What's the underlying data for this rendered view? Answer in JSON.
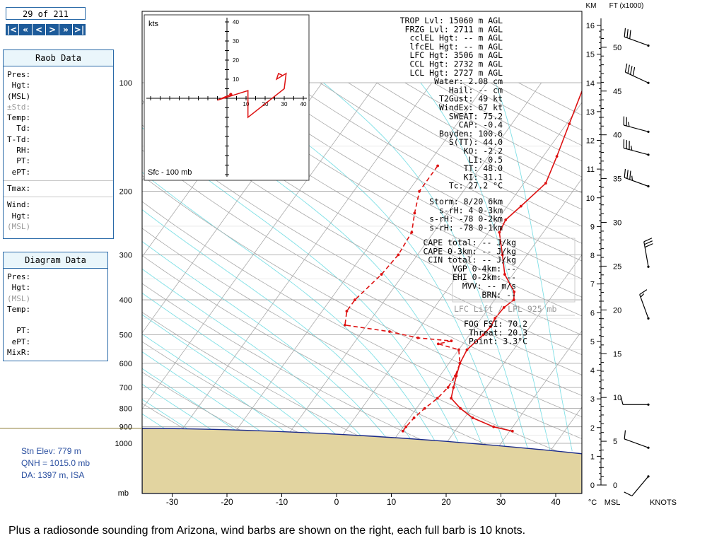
{
  "nav": {
    "counter": "29 of 211",
    "buttons": [
      {
        "label": "|<",
        "name": "first-button"
      },
      {
        "label": "«",
        "name": "prev-fast-button"
      },
      {
        "label": "<",
        "name": "prev-button"
      },
      {
        "label": ">",
        "name": "next-button"
      },
      {
        "label": "»",
        "name": "next-fast-button"
      },
      {
        "label": ">|",
        "name": "last-button"
      }
    ]
  },
  "raob_panel": {
    "title": "Raob Data",
    "rows": [
      {
        "text": "Pres:",
        "dim": false
      },
      {
        "text": " Hgt:",
        "dim": false
      },
      {
        "text": "(MSL)",
        "dim": false
      },
      {
        "text": "±Std:",
        "dim": true
      },
      {
        "text": "Temp:",
        "dim": false
      },
      {
        "text": "  Td:",
        "dim": false
      },
      {
        "text": "T-Td:",
        "dim": false
      },
      {
        "text": "  RH:",
        "dim": false
      },
      {
        "text": "  PT:",
        "dim": false
      },
      {
        "text": " ePT:",
        "dim": false
      }
    ],
    "rows2": [
      {
        "text": "Tmax:",
        "dim": false
      }
    ],
    "rows3": [
      {
        "text": "Wind:",
        "dim": false
      },
      {
        "text": " Hgt:",
        "dim": false
      },
      {
        "text": "(MSL)",
        "dim": true
      }
    ]
  },
  "diagram_panel": {
    "title": "Diagram Data",
    "rows": [
      {
        "text": "Pres:",
        "dim": false
      },
      {
        "text": " Hgt:",
        "dim": false
      },
      {
        "text": "(MSL)",
        "dim": true
      },
      {
        "text": "Temp:",
        "dim": false
      },
      {
        "text": "",
        "dim": false
      },
      {
        "text": "  PT:",
        "dim": false
      },
      {
        "text": " ePT:",
        "dim": false
      },
      {
        "text": "MixR:",
        "dim": false
      }
    ]
  },
  "station": {
    "elev": "Stn Elev: 779 m",
    "qnh": "QNH = 1015.0 mb",
    "da": "DA: 1397 m, ISA"
  },
  "caption": "Plus a radiosonde sounding from Arizona, wind barbs are shown on the right, each full barb is 10 knots.",
  "stats_block1": [
    "TROP Lvl: 15060 m AGL",
    "FRZG Lvl:  2711 m AGL",
    "cclEL Hgt:    -- m AGL",
    "lfcEL Hgt:    -- m AGL",
    "LFC Hgt:  3506 m AGL",
    "CCL Hgt:  2732 m AGL",
    "LCL Hgt:  2727 m AGL",
    "Water:  2.08 cm",
    "Hail:    -- cm",
    "T2Gust:    49 kt",
    "WindEx:    67 kt",
    "SWEAT:  75.2",
    "CAP:  -0.4",
    "Boyden: 100.6",
    "S(TT):  44.0",
    "KO:  -2.2",
    "LI:   0.5",
    "TT:  48.0",
    "KI:  31.1",
    "Tc:  27.2 °C"
  ],
  "stats_block2": [
    "Storm: 8/20  6km",
    "s-rH:    4  0-3km",
    "s-rH:  -78  0-2km",
    "s-rH:  -78  0-1km"
  ],
  "stats_block3": [
    "CAPE total:   -- J/kg",
    "CAPE 0-3km:   -- J/kg",
    "CIN total:   -- J/kg",
    "VGP 0-4km:   --",
    "EHI 0-2km:   --",
    "MVV:   -- m/s",
    "BRN:   --"
  ],
  "lfc_lift": "LFC Lift / LPL 925 mb",
  "stats_block4": [
    "FOG FSI: 70.2",
    "Threat: 20.3",
    "Point:  3.3°C"
  ],
  "chart_data": {
    "type": "skew-t",
    "xlabel": "°C",
    "ylabel": "mb",
    "pressure_ticks": [
      100,
      200,
      300,
      400,
      500,
      600,
      700,
      800,
      900,
      1000
    ],
    "temp_ticks": [
      -30,
      -20,
      -10,
      0,
      10,
      20,
      30,
      40
    ],
    "x_range": [
      -35,
      45
    ],
    "right_axes": {
      "km_label": "KM",
      "ft_label": "FT (x1000)",
      "msl_label": "MSL",
      "knots_label": "KNOTS",
      "km_max": 16,
      "ft_ticks": [
        0,
        5,
        10,
        15,
        20,
        25,
        30,
        35,
        40,
        45,
        50
      ]
    },
    "surface": {
      "pressure": 925,
      "label_color": "#e2d4a0"
    },
    "temperature": [
      [
        925,
        30.5
      ],
      [
        900,
        26.5
      ],
      [
        850,
        21.5
      ],
      [
        800,
        18.0
      ],
      [
        750,
        15.0
      ],
      [
        700,
        14.0
      ],
      [
        650,
        13.0
      ],
      [
        600,
        12.0
      ],
      [
        550,
        11.5
      ],
      [
        500,
        12.5
      ],
      [
        475,
        12.8
      ],
      [
        450,
        12.5
      ],
      [
        420,
        12.7
      ],
      [
        400,
        13.5
      ],
      [
        380,
        12.5
      ],
      [
        340,
        8.5
      ],
      [
        300,
        5.5
      ],
      [
        260,
        2.0
      ],
      [
        240,
        1.5
      ],
      [
        220,
        2.5
      ],
      [
        190,
        4.0
      ],
      [
        160,
        2.5
      ],
      [
        130,
        0.5
      ],
      [
        100,
        -2.0
      ],
      [
        90,
        -1.5
      ],
      [
        80,
        1.5
      ],
      [
        70,
        4.5
      ],
      [
        60,
        7.0
      ],
      [
        50,
        9.0
      ],
      [
        45,
        12.0
      ]
    ],
    "dewpoint": [
      [
        925,
        10.5
      ],
      [
        900,
        10.5
      ],
      [
        850,
        10.8
      ],
      [
        800,
        11.5
      ],
      [
        750,
        12.5
      ],
      [
        700,
        13.0
      ],
      [
        650,
        12.8
      ],
      [
        600,
        12.0
      ],
      [
        550,
        10.0
      ],
      [
        530,
        5.5
      ],
      [
        520,
        7.5
      ],
      [
        510,
        1.0
      ],
      [
        490,
        -5.0
      ],
      [
        470,
        -14.0
      ],
      [
        430,
        -15.5
      ],
      [
        400,
        -15.5
      ],
      [
        340,
        -14.0
      ],
      [
        300,
        -13.5
      ],
      [
        260,
        -14.0
      ],
      [
        230,
        -16.0
      ],
      [
        200,
        -18.0
      ],
      [
        170,
        -18.0
      ]
    ],
    "hodograph": {
      "title": "kts",
      "footer": "Sfc - 100 mb",
      "ticks": [
        10,
        20,
        30,
        40
      ],
      "points": [
        [
          2,
          2
        ],
        [
          -5,
          -1
        ],
        [
          11,
          4
        ],
        [
          11,
          -10
        ],
        [
          30,
          5
        ],
        [
          31,
          13
        ],
        [
          26,
          10
        ],
        [
          27,
          13
        ],
        [
          29,
          12
        ]
      ]
    },
    "wind_barbs": [
      {
        "alt_km": 0.3,
        "speed_kt": 10,
        "dir_deg": 220
      },
      {
        "alt_km": 1.3,
        "speed_kt": 10,
        "dir_deg": 290
      },
      {
        "alt_km": 2.8,
        "speed_kt": 10,
        "dir_deg": 270
      },
      {
        "alt_km": 5.8,
        "speed_kt": 15,
        "dir_deg": 340
      },
      {
        "alt_km": 7.6,
        "speed_kt": 30,
        "dir_deg": 350
      },
      {
        "alt_km": 10.4,
        "speed_kt": 35,
        "dir_deg": 290
      },
      {
        "alt_km": 11.5,
        "speed_kt": 35,
        "dir_deg": 285
      },
      {
        "alt_km": 12.3,
        "speed_kt": 25,
        "dir_deg": 285
      },
      {
        "alt_km": 14.0,
        "speed_kt": 40,
        "dir_deg": 295
      },
      {
        "alt_km": 15.3,
        "speed_kt": 30,
        "dir_deg": 290
      }
    ]
  }
}
